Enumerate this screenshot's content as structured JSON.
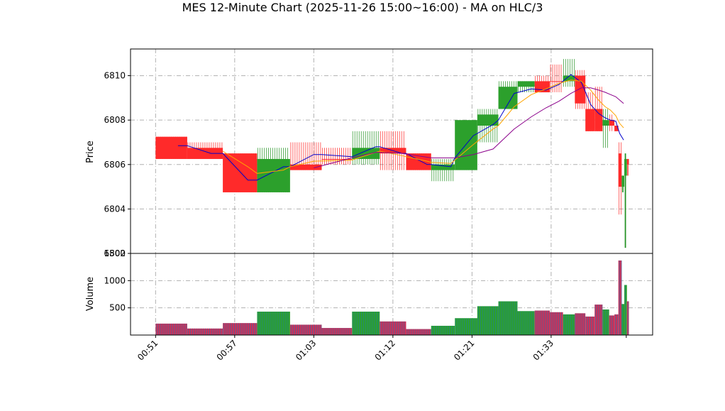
{
  "chart_data": {
    "type": "candlestick",
    "title": "MES 12-Minute Chart (2025-11-26 15:00~16:00) - MA on HLC/3",
    "price_panel": {
      "ylabel": "Price",
      "ylim": [
        6802.0,
        6811.2
      ],
      "yticks": [
        6802,
        6804,
        6806,
        6808,
        6810
      ],
      "grid": true
    },
    "volume_panel": {
      "ylabel": "Volume",
      "ylim": [
        0,
        1500
      ],
      "yticks": [
        500,
        1000,
        1500
      ],
      "grid": true
    },
    "x_axis": {
      "tick_labels": [
        "00:51",
        "00:57",
        "01:03",
        "01:12",
        "01:21",
        "01:33"
      ],
      "tick_positions": [
        0,
        6,
        12,
        18,
        24,
        30
      ],
      "xlim": [
        -1.9,
        37.7
      ]
    },
    "bars": [
      {
        "t": 0,
        "w": 2.4,
        "open": 6806.25,
        "high": 6807.25,
        "low": 6806.25,
        "close": 6807.25,
        "volume": 210,
        "color": "red"
      },
      {
        "t": 2.4,
        "w": 2.7,
        "open": 6806.75,
        "high": 6807.0,
        "low": 6806.25,
        "close": 6806.25,
        "volume": 120,
        "color": "red"
      },
      {
        "t": 5.1,
        "w": 2.6,
        "open": 6806.5,
        "high": 6806.5,
        "low": 6804.75,
        "close": 6804.75,
        "volume": 220,
        "color": "red"
      },
      {
        "t": 7.7,
        "w": 2.5,
        "open": 6804.75,
        "high": 6806.75,
        "low": 6804.75,
        "close": 6806.25,
        "volume": 430,
        "color": "green"
      },
      {
        "t": 10.2,
        "w": 2.4,
        "open": 6806.0,
        "high": 6807.0,
        "low": 6805.75,
        "close": 6805.75,
        "volume": 190,
        "color": "red"
      },
      {
        "t": 12.6,
        "w": 2.3,
        "open": 6806.25,
        "high": 6806.75,
        "low": 6806.0,
        "close": 6806.25,
        "volume": 130,
        "color": "red"
      },
      {
        "t": 14.9,
        "w": 2.1,
        "open": 6806.25,
        "high": 6807.5,
        "low": 6806.0,
        "close": 6806.75,
        "volume": 430,
        "color": "green"
      },
      {
        "t": 17.0,
        "w": 2.0,
        "open": 6806.75,
        "high": 6807.5,
        "low": 6805.75,
        "close": 6806.5,
        "volume": 250,
        "color": "red"
      },
      {
        "t": 19.0,
        "w": 1.9,
        "open": 6806.5,
        "high": 6806.5,
        "low": 6805.75,
        "close": 6805.75,
        "volume": 110,
        "color": "red"
      },
      {
        "t": 20.9,
        "w": 1.8,
        "open": 6805.75,
        "high": 6806.25,
        "low": 6805.25,
        "close": 6806.0,
        "volume": 170,
        "color": "green"
      },
      {
        "t": 22.7,
        "w": 1.7,
        "open": 6805.75,
        "high": 6808.0,
        "low": 6805.75,
        "close": 6808.0,
        "volume": 310,
        "color": "green"
      },
      {
        "t": 24.4,
        "w": 1.6,
        "open": 6807.75,
        "high": 6808.5,
        "low": 6807.0,
        "close": 6808.25,
        "volume": 530,
        "color": "green"
      },
      {
        "t": 26.0,
        "w": 1.45,
        "open": 6808.5,
        "high": 6809.75,
        "low": 6808.5,
        "close": 6809.5,
        "volume": 620,
        "color": "green"
      },
      {
        "t": 27.45,
        "w": 1.3,
        "open": 6809.5,
        "high": 6809.75,
        "low": 6809.25,
        "close": 6809.75,
        "volume": 440,
        "color": "green"
      },
      {
        "t": 28.75,
        "w": 1.15,
        "open": 6809.75,
        "high": 6810.0,
        "low": 6809.25,
        "close": 6809.25,
        "volume": 450,
        "color": "red"
      },
      {
        "t": 29.9,
        "w": 1.0,
        "open": 6809.75,
        "high": 6810.5,
        "low": 6809.25,
        "close": 6809.75,
        "volume": 420,
        "color": "red"
      },
      {
        "t": 30.9,
        "w": 0.9,
        "open": 6809.75,
        "high": 6810.75,
        "low": 6809.5,
        "close": 6810.0,
        "volume": 380,
        "color": "green"
      },
      {
        "t": 31.8,
        "w": 0.8,
        "open": 6810.0,
        "high": 6810.25,
        "low": 6808.5,
        "close": 6808.75,
        "volume": 400,
        "color": "red"
      },
      {
        "t": 32.6,
        "w": 0.7,
        "open": 6808.5,
        "high": 6809.25,
        "low": 6807.5,
        "close": 6807.5,
        "volume": 340,
        "color": "red"
      },
      {
        "t": 33.3,
        "w": 0.6,
        "open": 6808.5,
        "high": 6809.5,
        "low": 6807.5,
        "close": 6807.5,
        "volume": 560,
        "color": "red"
      },
      {
        "t": 33.9,
        "w": 0.5,
        "open": 6807.75,
        "high": 6808.5,
        "low": 6806.75,
        "close": 6808.0,
        "volume": 470,
        "color": "green"
      },
      {
        "t": 34.4,
        "w": 0.4,
        "open": 6808.0,
        "high": 6808.25,
        "low": 6807.5,
        "close": 6807.75,
        "volume": 360,
        "color": "red"
      },
      {
        "t": 34.8,
        "w": 0.3,
        "open": 6807.75,
        "high": 6807.75,
        "low": 6807.5,
        "close": 6807.5,
        "volume": 380,
        "color": "red"
      },
      {
        "t": 35.1,
        "w": 0.25,
        "open": 6806.5,
        "high": 6807.0,
        "low": 6803.75,
        "close": 6805.0,
        "volume": 1370,
        "color": "red"
      },
      {
        "t": 35.35,
        "w": 0.2,
        "open": 6805.0,
        "high": 6805.5,
        "low": 6804.75,
        "close": 6805.5,
        "volume": 570,
        "color": "green"
      },
      {
        "t": 35.55,
        "w": 0.2,
        "open": 6805.5,
        "high": 6806.5,
        "low": 6802.25,
        "close": 6806.25,
        "volume": 920,
        "color": "green"
      },
      {
        "t": 35.75,
        "w": 0.15,
        "open": 6806.25,
        "high": 6806.25,
        "low": 6805.5,
        "close": 6806.0,
        "volume": 620,
        "color": "red"
      }
    ],
    "moving_averages": [
      {
        "color": "#0000cc",
        "points": [
          [
            1.7,
            6806.85
          ],
          [
            2.4,
            6806.85
          ],
          [
            4.2,
            6806.5
          ],
          [
            5.1,
            6806.5
          ],
          [
            7.0,
            6805.3
          ],
          [
            7.7,
            6805.3
          ],
          [
            9.7,
            6805.9
          ],
          [
            10.2,
            6805.9
          ],
          [
            12.0,
            6806.45
          ],
          [
            12.6,
            6806.45
          ],
          [
            14.9,
            6806.35
          ],
          [
            16.7,
            6806.8
          ],
          [
            17.0,
            6806.8
          ],
          [
            18.7,
            6806.5
          ],
          [
            19.0,
            6806.5
          ],
          [
            20.6,
            6806.0
          ],
          [
            20.9,
            6806.0
          ],
          [
            22.4,
            6805.9
          ],
          [
            22.7,
            6806.3
          ],
          [
            24.1,
            6807.3
          ],
          [
            25.6,
            6807.8
          ],
          [
            26.0,
            6808.0
          ],
          [
            27.2,
            6809.2
          ],
          [
            28.5,
            6809.4
          ],
          [
            29.6,
            6809.35
          ],
          [
            30.6,
            6809.6
          ],
          [
            31.5,
            6810.05
          ],
          [
            32.3,
            6809.7
          ],
          [
            33.0,
            6808.7
          ],
          [
            33.6,
            6808.3
          ],
          [
            34.1,
            6808.1
          ],
          [
            34.5,
            6808.0
          ],
          [
            34.9,
            6807.95
          ],
          [
            35.2,
            6807.4
          ],
          [
            35.5,
            6807.1
          ]
        ]
      },
      {
        "color": "#ffa500",
        "points": [
          [
            5.1,
            6806.6
          ],
          [
            7.0,
            6805.9
          ],
          [
            7.7,
            6805.6
          ],
          [
            9.7,
            6805.75
          ],
          [
            10.2,
            6805.9
          ],
          [
            12.0,
            6806.15
          ],
          [
            14.9,
            6806.2
          ],
          [
            16.7,
            6806.55
          ],
          [
            17.0,
            6806.6
          ],
          [
            18.7,
            6806.4
          ],
          [
            19.0,
            6806.35
          ],
          [
            20.6,
            6806.15
          ],
          [
            20.9,
            6806.1
          ],
          [
            22.4,
            6806.05
          ],
          [
            24.1,
            6806.9
          ],
          [
            25.6,
            6807.6
          ],
          [
            26.0,
            6807.75
          ],
          [
            27.2,
            6808.6
          ],
          [
            28.5,
            6809.15
          ],
          [
            29.6,
            6809.4
          ],
          [
            30.6,
            6809.65
          ],
          [
            31.5,
            6809.8
          ],
          [
            32.3,
            6809.75
          ],
          [
            33.0,
            6809.35
          ],
          [
            33.6,
            6808.9
          ],
          [
            34.1,
            6808.6
          ],
          [
            34.5,
            6808.45
          ],
          [
            34.9,
            6808.2
          ],
          [
            35.2,
            6807.85
          ],
          [
            35.5,
            6807.65
          ]
        ]
      },
      {
        "color": "#8b008b",
        "points": [
          [
            12.0,
            6805.85
          ],
          [
            14.9,
            6806.3
          ],
          [
            16.7,
            6806.55
          ],
          [
            17.0,
            6806.55
          ],
          [
            18.7,
            6806.5
          ],
          [
            20.9,
            6806.3
          ],
          [
            22.7,
            6806.3
          ],
          [
            24.1,
            6806.45
          ],
          [
            25.6,
            6806.7
          ],
          [
            27.2,
            6807.6
          ],
          [
            28.5,
            6808.15
          ],
          [
            29.6,
            6808.55
          ],
          [
            30.6,
            6808.85
          ],
          [
            31.5,
            6809.2
          ],
          [
            32.3,
            6809.45
          ],
          [
            33.0,
            6809.45
          ],
          [
            33.6,
            6809.35
          ],
          [
            34.1,
            6809.25
          ],
          [
            34.5,
            6809.15
          ],
          [
            34.9,
            6809.05
          ],
          [
            35.2,
            6808.9
          ],
          [
            35.5,
            6808.75
          ]
        ]
      }
    ]
  }
}
